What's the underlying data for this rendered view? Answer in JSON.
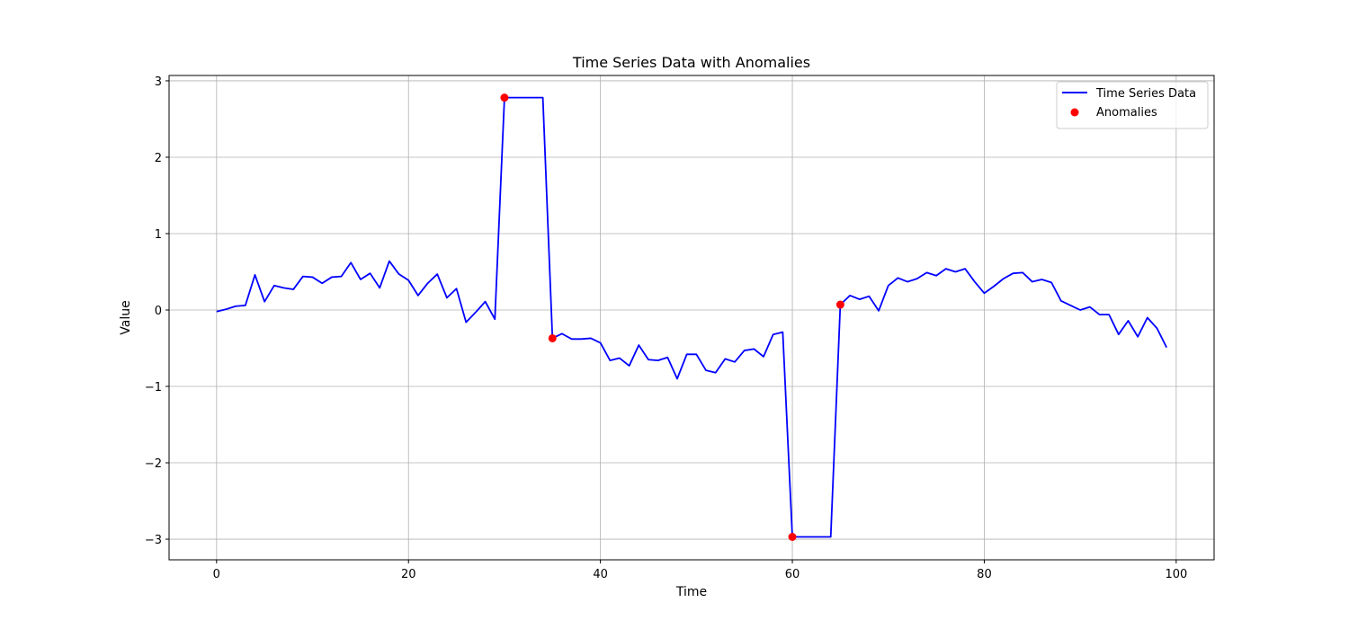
{
  "chart_data": {
    "type": "line",
    "title": "Time Series Data with Anomalies",
    "xlabel": "Time",
    "ylabel": "Value",
    "xlim": [
      -4.95,
      103.95
    ],
    "ylim": [
      -3.27,
      3.07
    ],
    "xticks": [
      0,
      20,
      40,
      60,
      80,
      100
    ],
    "yticks": [
      -3,
      -2,
      -1,
      0,
      1,
      2,
      3
    ],
    "grid": true,
    "legend_position": "top-right",
    "series": [
      {
        "name": "Time Series Data",
        "kind": "line",
        "color": "#0000ff",
        "x": [
          0,
          1,
          2,
          3,
          4,
          5,
          6,
          7,
          8,
          9,
          10,
          11,
          12,
          13,
          14,
          15,
          16,
          17,
          18,
          19,
          20,
          21,
          22,
          23,
          24,
          25,
          26,
          27,
          28,
          29,
          30,
          31,
          32,
          33,
          34,
          35,
          36,
          37,
          38,
          39,
          40,
          41,
          42,
          43,
          44,
          45,
          46,
          47,
          48,
          49,
          50,
          51,
          52,
          53,
          54,
          55,
          56,
          57,
          58,
          59,
          60,
          61,
          62,
          63,
          64,
          65,
          66,
          67,
          68,
          69,
          70,
          71,
          72,
          73,
          74,
          75,
          76,
          77,
          78,
          79,
          80,
          81,
          82,
          83,
          84,
          85,
          86,
          87,
          88,
          89,
          90,
          91,
          92,
          93,
          94,
          95,
          96,
          97,
          98,
          99
        ],
        "y": [
          -0.02,
          0.01,
          0.05,
          0.06,
          0.46,
          0.11,
          0.32,
          0.29,
          0.27,
          0.44,
          0.43,
          0.35,
          0.43,
          0.44,
          0.62,
          0.4,
          0.48,
          0.29,
          0.64,
          0.47,
          0.39,
          0.19,
          0.35,
          0.47,
          0.16,
          0.28,
          -0.16,
          -0.03,
          0.11,
          -0.12,
          2.78,
          2.78,
          2.78,
          2.78,
          2.78,
          -0.37,
          -0.31,
          -0.38,
          -0.38,
          -0.37,
          -0.43,
          -0.66,
          -0.63,
          -0.73,
          -0.46,
          -0.65,
          -0.66,
          -0.62,
          -0.9,
          -0.58,
          -0.58,
          -0.79,
          -0.82,
          -0.64,
          -0.68,
          -0.53,
          -0.51,
          -0.61,
          -0.32,
          -0.29,
          -2.97,
          -2.97,
          -2.97,
          -2.97,
          -2.97,
          0.07,
          0.19,
          0.14,
          0.18,
          -0.01,
          0.32,
          0.42,
          0.37,
          0.41,
          0.49,
          0.45,
          0.54,
          0.5,
          0.54,
          0.37,
          0.22,
          0.31,
          0.41,
          0.48,
          0.49,
          0.37,
          0.4,
          0.36,
          0.12,
          0.06,
          0.0,
          0.04,
          -0.06,
          -0.06,
          -0.32,
          -0.14,
          -0.35,
          -0.1,
          -0.24,
          -0.49
        ]
      },
      {
        "name": "Anomalies",
        "kind": "scatter",
        "color": "#ff0000",
        "x": [
          30,
          35,
          60,
          65
        ],
        "y": [
          2.78,
          -0.37,
          -2.97,
          0.07
        ]
      }
    ]
  }
}
